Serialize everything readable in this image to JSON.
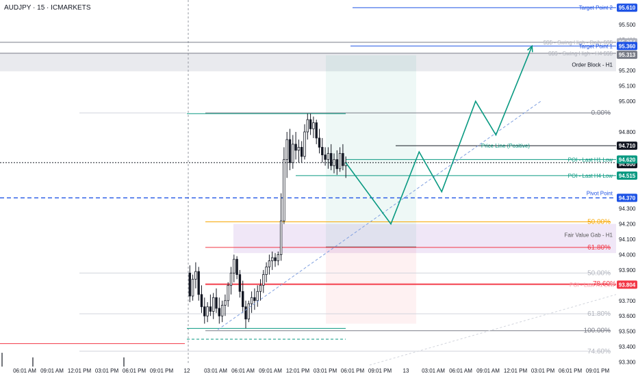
{
  "chart_data": {
    "type": "candlestick",
    "title": "AUDJPY · 15 · ICMARKETS",
    "xlabel": "",
    "ylabel": "",
    "ylim": [
      93.28,
      95.66
    ],
    "y_ticks": [
      {
        "v": 95.5,
        "t": "95.500"
      },
      {
        "v": 95.4,
        "t": "95.400"
      },
      {
        "v": 95.2,
        "t": "95.200"
      },
      {
        "v": 95.1,
        "t": "95.100"
      },
      {
        "v": 95.0,
        "t": "95.000"
      },
      {
        "v": 94.8,
        "t": "94.800"
      },
      {
        "v": 94.3,
        "t": "94.300"
      },
      {
        "v": 94.2,
        "t": "94.200"
      },
      {
        "v": 94.1,
        "t": "94.100"
      },
      {
        "v": 94.0,
        "t": "94.000"
      },
      {
        "v": 93.9,
        "t": "93.900"
      },
      {
        "v": 93.7,
        "t": "93.700"
      },
      {
        "v": 93.6,
        "t": "93.600"
      },
      {
        "v": 93.5,
        "t": "93.500"
      },
      {
        "v": 93.4,
        "t": "93.400"
      },
      {
        "v": 93.3,
        "t": "93.300"
      }
    ],
    "x_ticks": [
      "06:01 AM",
      "09:01 AM",
      "12:01 PM",
      "03:01 PM",
      "06:01 PM",
      "09:01 PM",
      "12",
      "03:01 AM",
      "06:01 AM",
      "09:01 AM",
      "12:01 PM",
      "03:01 PM",
      "06:01 PM",
      "09:01 PM",
      "13",
      "03:01 AM",
      "06:01 AM",
      "09:01 AM",
      "12:01 PM",
      "03:01 PM",
      "06:01 PM",
      "09:01 PM"
    ],
    "session_break_x_label": "12",
    "candles": [
      {
        "o": 93.88,
        "h": 93.93,
        "l": 93.69,
        "c": 93.73
      },
      {
        "o": 93.73,
        "h": 93.87,
        "l": 93.7,
        "c": 93.84
      },
      {
        "o": 93.84,
        "h": 93.95,
        "l": 93.78,
        "c": 93.89
      },
      {
        "o": 93.89,
        "h": 93.92,
        "l": 93.7,
        "c": 93.74
      },
      {
        "o": 93.74,
        "h": 93.8,
        "l": 93.62,
        "c": 93.66
      },
      {
        "o": 93.66,
        "h": 93.72,
        "l": 93.55,
        "c": 93.6
      },
      {
        "o": 93.6,
        "h": 93.69,
        "l": 93.56,
        "c": 93.66
      },
      {
        "o": 93.66,
        "h": 93.74,
        "l": 93.6,
        "c": 93.63
      },
      {
        "o": 93.63,
        "h": 93.75,
        "l": 93.58,
        "c": 93.72
      },
      {
        "o": 93.72,
        "h": 93.78,
        "l": 93.62,
        "c": 93.65
      },
      {
        "o": 93.65,
        "h": 93.72,
        "l": 93.55,
        "c": 93.6
      },
      {
        "o": 93.6,
        "h": 93.7,
        "l": 93.56,
        "c": 93.67
      },
      {
        "o": 93.67,
        "h": 93.74,
        "l": 93.6,
        "c": 93.7
      },
      {
        "o": 93.7,
        "h": 93.82,
        "l": 93.66,
        "c": 93.8
      },
      {
        "o": 93.8,
        "h": 93.92,
        "l": 93.74,
        "c": 93.88
      },
      {
        "o": 93.88,
        "h": 94.0,
        "l": 93.82,
        "c": 93.97
      },
      {
        "o": 93.97,
        "h": 93.99,
        "l": 93.84,
        "c": 93.87
      },
      {
        "o": 93.87,
        "h": 93.9,
        "l": 93.72,
        "c": 93.76
      },
      {
        "o": 93.76,
        "h": 93.83,
        "l": 93.62,
        "c": 93.66
      },
      {
        "o": 93.66,
        "h": 93.7,
        "l": 93.52,
        "c": 93.58
      },
      {
        "o": 93.58,
        "h": 93.7,
        "l": 93.56,
        "c": 93.68
      },
      {
        "o": 93.68,
        "h": 93.76,
        "l": 93.62,
        "c": 93.72
      },
      {
        "o": 93.72,
        "h": 93.78,
        "l": 93.64,
        "c": 93.7
      },
      {
        "o": 93.7,
        "h": 93.8,
        "l": 93.66,
        "c": 93.76
      },
      {
        "o": 93.76,
        "h": 93.84,
        "l": 93.7,
        "c": 93.8
      },
      {
        "o": 93.8,
        "h": 93.9,
        "l": 93.75,
        "c": 93.87
      },
      {
        "o": 93.87,
        "h": 93.95,
        "l": 93.82,
        "c": 93.92
      },
      {
        "o": 93.92,
        "h": 94.0,
        "l": 93.87,
        "c": 93.96
      },
      {
        "o": 93.96,
        "h": 94.02,
        "l": 93.9,
        "c": 93.98
      },
      {
        "o": 93.98,
        "h": 94.01,
        "l": 93.92,
        "c": 93.96
      },
      {
        "o": 93.96,
        "h": 94.02,
        "l": 93.93,
        "c": 94.0
      },
      {
        "o": 94.0,
        "h": 94.4,
        "l": 93.96,
        "c": 94.22
      },
      {
        "o": 94.22,
        "h": 94.7,
        "l": 94.2,
        "c": 94.62
      },
      {
        "o": 94.62,
        "h": 94.8,
        "l": 94.5,
        "c": 94.75
      },
      {
        "o": 94.75,
        "h": 94.82,
        "l": 94.55,
        "c": 94.6
      },
      {
        "o": 94.6,
        "h": 94.78,
        "l": 94.56,
        "c": 94.72
      },
      {
        "o": 94.72,
        "h": 94.8,
        "l": 94.62,
        "c": 94.68
      },
      {
        "o": 94.68,
        "h": 94.75,
        "l": 94.6,
        "c": 94.7
      },
      {
        "o": 94.7,
        "h": 94.74,
        "l": 94.6,
        "c": 94.64
      },
      {
        "o": 94.64,
        "h": 94.85,
        "l": 94.62,
        "c": 94.8
      },
      {
        "o": 94.8,
        "h": 94.92,
        "l": 94.75,
        "c": 94.88
      },
      {
        "o": 94.88,
        "h": 94.92,
        "l": 94.78,
        "c": 94.82
      },
      {
        "o": 94.82,
        "h": 94.9,
        "l": 94.76,
        "c": 94.86
      },
      {
        "o": 94.86,
        "h": 94.88,
        "l": 94.72,
        "c": 94.76
      },
      {
        "o": 94.76,
        "h": 94.82,
        "l": 94.66,
        "c": 94.7
      },
      {
        "o": 94.7,
        "h": 94.76,
        "l": 94.6,
        "c": 94.65
      },
      {
        "o": 94.65,
        "h": 94.7,
        "l": 94.58,
        "c": 94.62
      },
      {
        "o": 94.62,
        "h": 94.7,
        "l": 94.56,
        "c": 94.66
      },
      {
        "o": 94.66,
        "h": 94.72,
        "l": 94.55,
        "c": 94.58
      },
      {
        "o": 94.58,
        "h": 94.66,
        "l": 94.53,
        "c": 94.62
      },
      {
        "o": 94.62,
        "h": 94.68,
        "l": 94.52,
        "c": 94.56
      },
      {
        "o": 94.56,
        "h": 94.7,
        "l": 94.54,
        "c": 94.66
      },
      {
        "o": 94.66,
        "h": 94.72,
        "l": 94.55,
        "c": 94.58
      },
      {
        "o": 94.58,
        "h": 94.64,
        "l": 94.5,
        "c": 94.6
      }
    ],
    "levels": {
      "target_point_2": {
        "label": "Target Point 2",
        "value": 95.61,
        "badge": "95.610",
        "color": "#1e53e5"
      },
      "swing_high_daily": {
        "label": "$$$ - Swing High - Daily $$$",
        "value": 95.384,
        "badge": "95.384",
        "color": "#787b86"
      },
      "target_point_1": {
        "label": "Target Point 1",
        "value": 95.36,
        "badge": "95.360",
        "color": "#1e53e5"
      },
      "swing_high_h4": {
        "label": "$$$ - Swing High - H4 $$$",
        "value": 95.313,
        "badge": "95.313",
        "color": "#787b86"
      },
      "order_block_h1": {
        "label": "Order Block - H1",
        "top": 95.313,
        "bottom": 95.195,
        "color": "#e9eaee"
      },
      "price_line": {
        "label": "Price Line (Positive)",
        "value": 94.71,
        "badge": "94.710",
        "color": "#131722"
      },
      "poi_h1": {
        "label": "POI - Last H1 Low",
        "value": 94.62,
        "badge": "94.620",
        "color": "#089981"
      },
      "current_price": {
        "value": 94.6,
        "badge": "94.600"
      },
      "poi_h4": {
        "label": "POI - Last H4 Low",
        "value": 94.515,
        "badge": "94.515",
        "color": "#089981"
      },
      "pivot_point": {
        "label": "Pivot Point",
        "value": 94.37,
        "badge": "94.370",
        "color": "#1e53e5"
      },
      "fair_value_gap": {
        "label": "Fair Value Gab - H1",
        "top": 94.2,
        "bottom": 94.01,
        "color": "#ede3f6"
      },
      "poi_last": {
        "label": "POI - Last H1 Low",
        "value": 93.804,
        "badge": "93.804",
        "color": "#f23645"
      }
    },
    "fibonacci_primary": [
      {
        "label": "0.00%",
        "value": 94.924,
        "color": "#787b86"
      },
      {
        "label": "50.00%",
        "value": 94.214,
        "color": "#f7a600"
      },
      {
        "label": "61.80%",
        "value": 94.047,
        "color": "#f23645"
      },
      {
        "label": "78.60%",
        "value": 93.81,
        "color": "#f23645"
      },
      {
        "label": "100.00%",
        "value": 93.504,
        "color": "#787b86"
      }
    ],
    "fibonacci_faded": [
      {
        "label": "50.00%",
        "value": 93.88
      },
      {
        "label": "61.80%",
        "value": 93.614
      },
      {
        "label": "74.60%",
        "value": 93.37
      }
    ],
    "long_position": {
      "entry": 94.05,
      "target": 95.3,
      "stop": 93.55
    },
    "projection_path": [
      [
        0,
        94.6
      ],
      [
        4,
        94.2
      ],
      [
        6.5,
        94.67
      ],
      [
        8.5,
        94.41
      ],
      [
        11.5,
        95.0
      ],
      [
        13.3,
        94.78
      ],
      [
        16.5,
        95.36
      ]
    ],
    "trendlines": [
      {
        "from": [
          93.51,
          0
        ],
        "to": [
          95.02,
          1
        ],
        "style": "dashed"
      },
      {
        "from": [
          93.3,
          0
        ],
        "to": [
          93.75,
          1
        ],
        "style": "dotted"
      }
    ]
  }
}
